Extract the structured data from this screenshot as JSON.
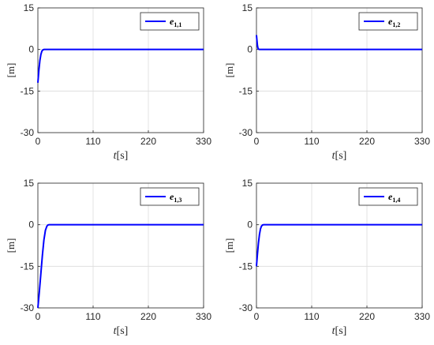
{
  "chart_data": [
    {
      "type": "line",
      "legend": "e",
      "legend_sub": "1,1",
      "xlabel_var": "t",
      "xlabel_unit": "[s]",
      "ylabel": "[m]",
      "xlim": [
        0,
        330
      ],
      "ylim": [
        -30,
        15
      ],
      "xticks": [
        "0",
        "110",
        "220",
        "330"
      ],
      "yticks": [
        "15",
        "0",
        "-15",
        "-30"
      ],
      "grid": true,
      "legend_position": "top-right",
      "series_color": "#0000ff",
      "x": [
        0,
        2,
        4,
        6,
        8,
        10,
        12,
        15,
        330
      ],
      "y": [
        -12,
        -7.5,
        -4,
        -1.8,
        -0.6,
        -0.15,
        0,
        0,
        0
      ]
    },
    {
      "type": "line",
      "legend": "e",
      "legend_sub": "1,2",
      "xlabel_var": "t",
      "xlabel_unit": "[s]",
      "ylabel": "[m]",
      "xlim": [
        0,
        330
      ],
      "ylim": [
        -30,
        15
      ],
      "xticks": [
        "0",
        "110",
        "220",
        "330"
      ],
      "yticks": [
        "15",
        "0",
        "-15",
        "-30"
      ],
      "grid": true,
      "legend_position": "top-right",
      "series_color": "#0000ff",
      "x": [
        0,
        1,
        2,
        3,
        4,
        6,
        330
      ],
      "y": [
        5.2,
        3.2,
        1.4,
        0.5,
        0.15,
        0,
        0
      ]
    },
    {
      "type": "line",
      "legend": "e",
      "legend_sub": "1,3",
      "xlabel_var": "t",
      "xlabel_unit": "[s]",
      "ylabel": "[m]",
      "xlim": [
        0,
        330
      ],
      "ylim": [
        -30,
        15
      ],
      "xticks": [
        "0",
        "110",
        "220",
        "330"
      ],
      "yticks": [
        "15",
        "0",
        "-15",
        "-30"
      ],
      "grid": true,
      "legend_position": "top-right",
      "series_color": "#0000ff",
      "x": [
        0,
        3,
        6,
        9,
        12,
        15,
        18,
        20,
        22,
        330
      ],
      "y": [
        -30,
        -24,
        -17.5,
        -11,
        -5.5,
        -2,
        -0.5,
        -0.1,
        0,
        0
      ]
    },
    {
      "type": "line",
      "legend": "e",
      "legend_sub": "1,4",
      "xlabel_var": "t",
      "xlabel_unit": "[s]",
      "ylabel": "[m]",
      "xlim": [
        0,
        330
      ],
      "ylim": [
        -30,
        15
      ],
      "xticks": [
        "0",
        "110",
        "220",
        "330"
      ],
      "yticks": [
        "15",
        "0",
        "-15",
        "-30"
      ],
      "grid": true,
      "legend_position": "top-right",
      "series_color": "#0000ff",
      "x": [
        0,
        2,
        4,
        6,
        8,
        10,
        12,
        14,
        330
      ],
      "y": [
        -15,
        -10.5,
        -6.5,
        -3.5,
        -1.5,
        -0.5,
        -0.1,
        0,
        0
      ]
    }
  ]
}
